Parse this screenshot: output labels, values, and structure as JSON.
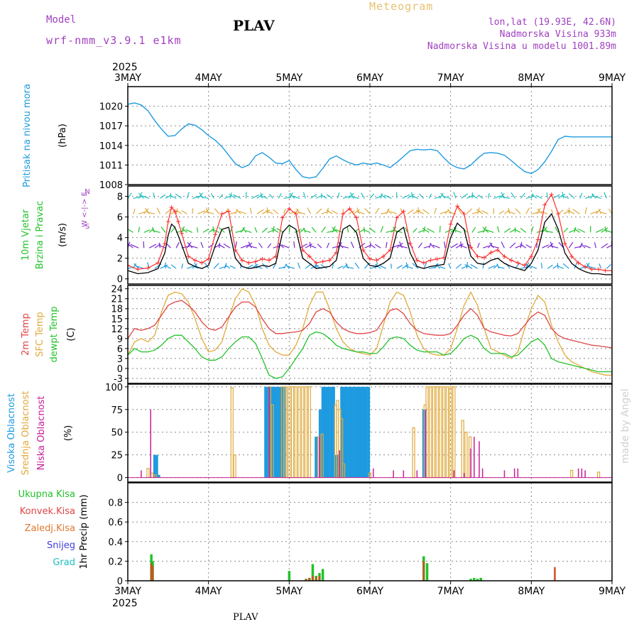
{
  "header": {
    "model_label": "Model",
    "model_name": "wrf-nmm_v3.9.1 e1km",
    "station": "PLAV",
    "product": "Meteogram",
    "coords": "lon,lat (19.93E, 42.6N)",
    "elevation": "Nadmorska Visina 933m",
    "model_elevation": "Nadmorska Visina u modelu 1001.89m",
    "footer_station": "PLAV",
    "credit": "made by Angel"
  },
  "colors": {
    "pressure": "#1e9be0",
    "grid": "#888888",
    "t2m": "#e04545",
    "sfc": "#e0aa3c",
    "dewpt": "#22c22a",
    "high_cloud": "#1e9be0",
    "mid_cloud": "#e0aa3c",
    "low_cloud": "#c81e96",
    "wind_line": "#000000",
    "wind_gust": "#ff3030",
    "header_purple": "#a040c0",
    "header_gold": "#e8c070"
  },
  "x_axis": {
    "year": "2025",
    "ticks": [
      "3MAY",
      "4MAY",
      "5MAY",
      "6MAY",
      "7MAY",
      "8MAY",
      "9MAY"
    ],
    "range_hours": [
      0,
      144
    ]
  },
  "chart_data": [
    {
      "type": "line",
      "name": "pressure",
      "ylabel_color": "Pritisak na nivou mora",
      "ylabel_unit": "(hPa)",
      "ylim": [
        1008,
        1023
      ],
      "yticks": [
        "1008",
        "1011",
        "1014",
        "1017",
        "1020"
      ],
      "series": [
        {
          "x": [
            0,
            2,
            4,
            6,
            8,
            10,
            12,
            14,
            16,
            18,
            20,
            22,
            24,
            26,
            28,
            30,
            32,
            34,
            36,
            38,
            40,
            42,
            44,
            46,
            48,
            50,
            52,
            54,
            56,
            58,
            60,
            62,
            64,
            66,
            68,
            70,
            72,
            74,
            76,
            78,
            80,
            82,
            84,
            86,
            88,
            90,
            92,
            94,
            96,
            98,
            100,
            102,
            104,
            106,
            108,
            110,
            112,
            114,
            116,
            118,
            120,
            122,
            124,
            126,
            128,
            130,
            132,
            134,
            136,
            138,
            140,
            142,
            144
          ],
          "y": [
            1020.3,
            1020.5,
            1020.2,
            1019.3,
            1017.8,
            1016.5,
            1015.4,
            1015.5,
            1016.5,
            1017.3,
            1017.1,
            1016.4,
            1015.5,
            1014.8,
            1013.8,
            1012.5,
            1011.2,
            1010.6,
            1011.0,
            1012.4,
            1012.9,
            1012.2,
            1011.3,
            1011.2,
            1011.7,
            1010.3,
            1009.2,
            1009.0,
            1009.2,
            1010.5,
            1011.9,
            1012.4,
            1011.8,
            1011.3,
            1011.0,
            1011.3,
            1011.1,
            1011.3,
            1011.0,
            1010.6,
            1011.4,
            1012.3,
            1013.2,
            1013.4,
            1013.3,
            1013.4,
            1013.2,
            1012.1,
            1011.1,
            1010.6,
            1010.4,
            1011.0,
            1012.0,
            1012.8,
            1012.9,
            1012.8,
            1012.5,
            1011.7,
            1010.8,
            1010.0,
            1009.7,
            1010.3,
            1011.5,
            1013.1,
            1014.9,
            1015.4,
            1015.3,
            1015.3,
            1015.3,
            1015.3,
            1015.3,
            1015.3,
            1015.3
          ]
        }
      ]
    },
    {
      "type": "line",
      "name": "wind",
      "ylabel_color": "10m Vjetar Brzina i Pravac",
      "ylabel_unit": "(m/s)",
      "compass": "W <-|-> E",
      "compass_n": "N",
      "compass_s": "S",
      "ylim": [
        -0.5,
        9
      ],
      "yticks": [
        "0",
        "2",
        "4",
        "6",
        "8"
      ],
      "series": [
        {
          "name": "speed",
          "x": [
            0,
            3,
            6,
            9,
            11,
            12,
            13,
            14,
            15,
            16,
            18,
            20,
            22,
            24,
            26,
            28,
            30,
            32,
            34,
            36,
            38,
            40,
            42,
            44,
            46,
            48,
            50,
            52,
            54,
            56,
            58,
            60,
            62,
            64,
            66,
            68,
            70,
            72,
            74,
            76,
            78,
            80,
            82,
            84,
            86,
            88,
            90,
            92,
            94,
            96,
            98,
            100,
            102,
            104,
            106,
            108,
            110,
            112,
            114,
            116,
            118,
            120,
            122,
            124,
            126,
            128,
            130,
            132,
            134,
            136,
            138,
            140,
            142,
            144
          ],
          "y": [
            0.8,
            0.5,
            0.6,
            1.0,
            2.5,
            4.2,
            5.3,
            5.0,
            4.2,
            3.3,
            1.5,
            1.2,
            1.0,
            1.3,
            3.2,
            4.8,
            5.0,
            2.0,
            1.2,
            1.0,
            1.1,
            1.3,
            1.2,
            1.5,
            4.5,
            5.2,
            4.8,
            2.0,
            1.5,
            1.0,
            1.1,
            1.2,
            1.8,
            4.8,
            5.2,
            4.5,
            2.0,
            1.3,
            1.2,
            1.5,
            2.0,
            4.5,
            5.0,
            2.5,
            1.2,
            1.0,
            1.2,
            1.3,
            1.4,
            4.0,
            5.4,
            4.8,
            2.2,
            1.5,
            1.4,
            1.8,
            2.0,
            1.5,
            1.2,
            1.0,
            0.8,
            1.5,
            2.8,
            5.5,
            6.3,
            4.8,
            2.5,
            1.5,
            1.0,
            0.7,
            0.5,
            0.5,
            0.4,
            0.4
          ]
        }
      ]
    },
    {
      "type": "line",
      "name": "temperature",
      "ylabel_1": "2m Temp",
      "ylabel_2": "SFC Temp",
      "ylabel_3": "dewpt Temp",
      "ylabel_unit": "(C)",
      "ylim": [
        -4.5,
        25
      ],
      "yticks": [
        "-3",
        "0",
        "3",
        "6",
        "9",
        "12",
        "15",
        "18",
        "21",
        "24"
      ],
      "series": [
        {
          "name": "2m",
          "x": [
            0,
            2,
            4,
            6,
            8,
            10,
            12,
            14,
            16,
            18,
            20,
            22,
            24,
            26,
            28,
            30,
            32,
            34,
            36,
            38,
            40,
            42,
            44,
            46,
            48,
            50,
            52,
            54,
            56,
            58,
            60,
            62,
            64,
            66,
            68,
            70,
            72,
            74,
            76,
            78,
            80,
            82,
            84,
            86,
            88,
            90,
            92,
            94,
            96,
            98,
            100,
            102,
            104,
            106,
            108,
            110,
            112,
            114,
            116,
            118,
            120,
            122,
            124,
            126,
            128,
            130,
            132,
            134,
            136,
            138,
            140,
            142,
            144
          ],
          "y": [
            9,
            12,
            11.5,
            12,
            13,
            16,
            19,
            20,
            20.5,
            19,
            17,
            14,
            12,
            11.5,
            12.5,
            15.5,
            18.5,
            20,
            20,
            18.5,
            15,
            12,
            10.5,
            10.5,
            10.8,
            11,
            11.5,
            13.5,
            17,
            18,
            17,
            14,
            12,
            11,
            10.5,
            10.5,
            10.8,
            11.5,
            14.5,
            17.5,
            18,
            16.5,
            13.5,
            11.5,
            10.5,
            10.2,
            10,
            10,
            10.5,
            13,
            16,
            18,
            16,
            12,
            11,
            10.5,
            10,
            9.8,
            10.5,
            13,
            15.5,
            17,
            16,
            12,
            10,
            9,
            8.5,
            8,
            7.5,
            7,
            6.8,
            6.5,
            6.2
          ]
        },
        {
          "name": "sfc",
          "x": [
            0,
            2,
            4,
            6,
            8,
            10,
            12,
            14,
            16,
            18,
            20,
            22,
            24,
            26,
            28,
            30,
            32,
            34,
            36,
            38,
            40,
            42,
            44,
            46,
            48,
            50,
            52,
            54,
            56,
            58,
            60,
            62,
            64,
            66,
            68,
            70,
            72,
            74,
            76,
            78,
            80,
            82,
            84,
            86,
            88,
            90,
            92,
            94,
            96,
            98,
            100,
            102,
            104,
            106,
            108,
            110,
            112,
            114,
            116,
            118,
            120,
            122,
            124,
            126,
            128,
            130,
            132,
            134,
            136,
            138,
            140,
            142,
            144
          ],
          "y": [
            4,
            8,
            9,
            8,
            10,
            17,
            22,
            23,
            22.5,
            20,
            15,
            9,
            5,
            5.5,
            8,
            15,
            21,
            24,
            23,
            19,
            12,
            7,
            5,
            4,
            4,
            7,
            12,
            19,
            23,
            23,
            18,
            12,
            8,
            6,
            5,
            4.5,
            4,
            6,
            13,
            20,
            23,
            22,
            17,
            10,
            6,
            4.5,
            4,
            4,
            6,
            12,
            19,
            23,
            19,
            12,
            6,
            5,
            4,
            3,
            5,
            12,
            18,
            22,
            20,
            13,
            8,
            4,
            2,
            1,
            0,
            -1,
            -1.5,
            -2,
            -2
          ]
        },
        {
          "name": "dewpt",
          "x": [
            0,
            2,
            4,
            6,
            8,
            10,
            12,
            14,
            16,
            18,
            20,
            22,
            24,
            26,
            28,
            30,
            32,
            34,
            36,
            38,
            40,
            42,
            44,
            46,
            48,
            50,
            52,
            54,
            56,
            58,
            60,
            62,
            64,
            66,
            68,
            70,
            72,
            74,
            76,
            78,
            80,
            82,
            84,
            86,
            88,
            90,
            92,
            94,
            96,
            98,
            100,
            102,
            104,
            106,
            108,
            110,
            112,
            114,
            116,
            118,
            120,
            122,
            124,
            126,
            128,
            130,
            132,
            134,
            136,
            138,
            140,
            142,
            144
          ],
          "y": [
            4,
            6,
            5,
            5,
            5.5,
            7,
            9,
            10,
            10,
            8,
            6,
            3.5,
            2.5,
            2.5,
            3.5,
            6,
            8,
            9.5,
            9.5,
            7.5,
            3,
            -2,
            -3,
            -2.5,
            0,
            3,
            6,
            10,
            11,
            10.5,
            9,
            7,
            6,
            5.5,
            5,
            5,
            4.5,
            4.5,
            6.5,
            9,
            9.5,
            9,
            7,
            5.5,
            5,
            5,
            5,
            4,
            4.5,
            6.5,
            9,
            10,
            9,
            6,
            4.5,
            4.5,
            4.5,
            3.5,
            4,
            6,
            8,
            9,
            7,
            3,
            2,
            1.5,
            1,
            0.5,
            0,
            -0.5,
            -1,
            -1,
            -1
          ]
        }
      ]
    },
    {
      "type": "bar",
      "name": "clouds",
      "ylabel_1": "Visoka Oblacnost",
      "ylabel_2": "Srednja Oblacnost",
      "ylabel_3": "Niska Oblacnost",
      "ylabel_unit": "(%)",
      "ylim": [
        -5,
        103
      ],
      "yticks": [
        "0",
        "25",
        "50",
        "75",
        "100"
      ],
      "series": [
        {
          "name": "high",
          "x": [
            8,
            8.6,
            9.2,
            41,
            41.8,
            42.6,
            43.4,
            44.2,
            45,
            45.8,
            46.6,
            56,
            57.2,
            58,
            58.8,
            59.6,
            60.4,
            61.2,
            62,
            62.8,
            63.6,
            64.4,
            65.2,
            66,
            66.8,
            67.6,
            68.4,
            69.2,
            70,
            70.8,
            71.6,
            88
          ],
          "y": [
            25,
            25,
            3,
            100,
            100,
            100,
            100,
            100,
            100,
            100,
            100,
            45,
            75,
            100,
            100,
            100,
            100,
            100,
            25,
            25,
            100,
            100,
            100,
            100,
            100,
            100,
            100,
            100,
            100,
            100,
            100,
            75
          ]
        },
        {
          "name": "mid",
          "x": [
            6,
            7.2,
            8.2,
            31,
            31.8,
            42.2,
            43,
            46,
            47,
            48,
            49,
            50,
            51,
            52,
            53,
            54,
            56.8,
            57.8,
            61.8,
            62.4,
            63,
            63.6,
            64.2,
            72,
            85,
            88.4,
            89,
            90,
            91,
            92,
            93,
            94,
            95,
            96,
            97,
            99.6,
            100.6,
            101.8,
            132,
            140
          ],
          "y": [
            10,
            5,
            3,
            99,
            25,
            100,
            80,
            100,
            100,
            100,
            100,
            100,
            100,
            100,
            100,
            100,
            45,
            48,
            80,
            85,
            75,
            65,
            15,
            5,
            55,
            80,
            100,
            100,
            100,
            100,
            100,
            100,
            100,
            100,
            100,
            63,
            50,
            45,
            8,
            6
          ]
        },
        {
          "name": "low",
          "x": [
            4,
            6.8,
            42,
            57,
            63,
            73,
            79,
            82,
            86,
            88.6,
            97,
            100,
            102,
            103,
            104.5,
            105.5,
            112,
            115,
            116,
            134,
            135,
            136
          ],
          "y": [
            8,
            75,
            100,
            45,
            30,
            10,
            8,
            8,
            8,
            75,
            8,
            5,
            32,
            45,
            40,
            10,
            8,
            10,
            10,
            10,
            10,
            8
          ]
        }
      ]
    },
    {
      "type": "bar",
      "name": "precip",
      "ylabel_1": "Ukupna Kisa",
      "ylabel_2": "Konvek.Kisa",
      "ylabel_3": "Zaledj.Kisa",
      "ylabel_4": "Snijeg",
      "ylabel_5": "Grad",
      "ylabel_unit": "1hr Precip (mm)",
      "ylim": [
        0,
        1.0
      ],
      "yticks": [
        "0",
        "0.2",
        "0.4",
        "0.6",
        "0.8"
      ],
      "series": [
        {
          "name": "total",
          "x": [
            7,
            7.4,
            48,
            53,
            54,
            55,
            56,
            57,
            58,
            88,
            89,
            102,
            103,
            104,
            105
          ],
          "y": [
            0.27,
            0.2,
            0.1,
            0.02,
            0.03,
            0.17,
            0.05,
            0.08,
            0.12,
            0.25,
            0.18,
            0.02,
            0.03,
            0.02,
            0.03
          ]
        },
        {
          "name": "convective",
          "x": [
            7,
            7.4,
            53,
            54,
            55,
            56,
            57,
            88,
            127
          ],
          "y": [
            0.18,
            0.15,
            0.02,
            0.03,
            0.05,
            0.04,
            0.05,
            0.2,
            0.14
          ]
        }
      ]
    }
  ]
}
